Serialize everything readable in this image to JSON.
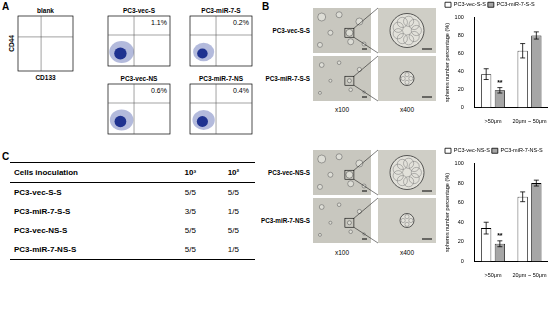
{
  "panel_labels": [
    "A",
    "B",
    "C"
  ],
  "flow": {
    "x_label": "CD133",
    "y_label": "CD44",
    "plots": [
      {
        "title": "blank"
      },
      {
        "title": "PC3-vec-S",
        "percent": "1.1%"
      },
      {
        "title": "PC3-miR-7-S",
        "percent": "0.2%"
      },
      {
        "title": "PC3-vec-NS",
        "percent": "0.6%"
      },
      {
        "title": "PC3-miR-7-NS",
        "percent": "0.4%"
      }
    ]
  },
  "spheres": {
    "rows": [
      "PC3-vec-S-S",
      "PC3-miR-7-S-S",
      "PC3-vec-NS-S",
      "PC3-miR-7-NS-S"
    ],
    "magnifications": [
      "x100",
      "x400"
    ]
  },
  "table": {
    "header": [
      "Cells inoculation",
      "10³",
      "10²"
    ],
    "rows": [
      [
        "PC3-vec-S-S",
        "5/5",
        "5/5"
      ],
      [
        "PC3-miR-7-S-S",
        "3/5",
        "1/5"
      ],
      [
        "PC3-vec-NS-S",
        "5/5",
        "5/5"
      ],
      [
        "PC3-miR-7-NS-S",
        "5/5",
        "1/5"
      ]
    ]
  },
  "chart_data": [
    {
      "type": "bar",
      "categories": [
        ">50μm",
        "20μm ~ 50μm"
      ],
      "y_label": "spheres number percentage (%)",
      "ylim": [
        0,
        100
      ],
      "yticks": [
        0,
        20,
        40,
        60,
        80,
        100
      ],
      "grid": false,
      "legend": "top-left",
      "series": [
        {
          "name": "PC3-vec-S-S",
          "color": "#ffffff",
          "values": [
            37,
            63
          ],
          "errors": [
            6,
            8
          ]
        },
        {
          "name": "PC3-miR-7-S-S",
          "color": "#a6a6a6",
          "values": [
            19,
            80
          ],
          "errors": [
            3,
            4
          ]
        }
      ],
      "annotations": [
        {
          "text": "**",
          "category": ">50μm",
          "series": "PC3-miR-7-S-S"
        }
      ]
    },
    {
      "type": "bar",
      "categories": [
        ">50μm",
        "20μm ~ 50μm"
      ],
      "y_label": "spheres number percentage (%)",
      "ylim": [
        0,
        100
      ],
      "yticks": [
        0,
        20,
        40,
        60,
        80,
        100
      ],
      "grid": false,
      "legend": "top-left",
      "series": [
        {
          "name": "PC3-vec-NS-S",
          "color": "#ffffff",
          "values": [
            34,
            66
          ],
          "errors": [
            6,
            5
          ]
        },
        {
          "name": "PC3-miR-7-NS-S",
          "color": "#a6a6a6",
          "values": [
            18,
            80
          ],
          "errors": [
            3,
            3
          ]
        }
      ],
      "annotations": [
        {
          "text": "**",
          "category": ">50μm",
          "series": "PC3-miR-7-NS-S"
        }
      ]
    }
  ]
}
